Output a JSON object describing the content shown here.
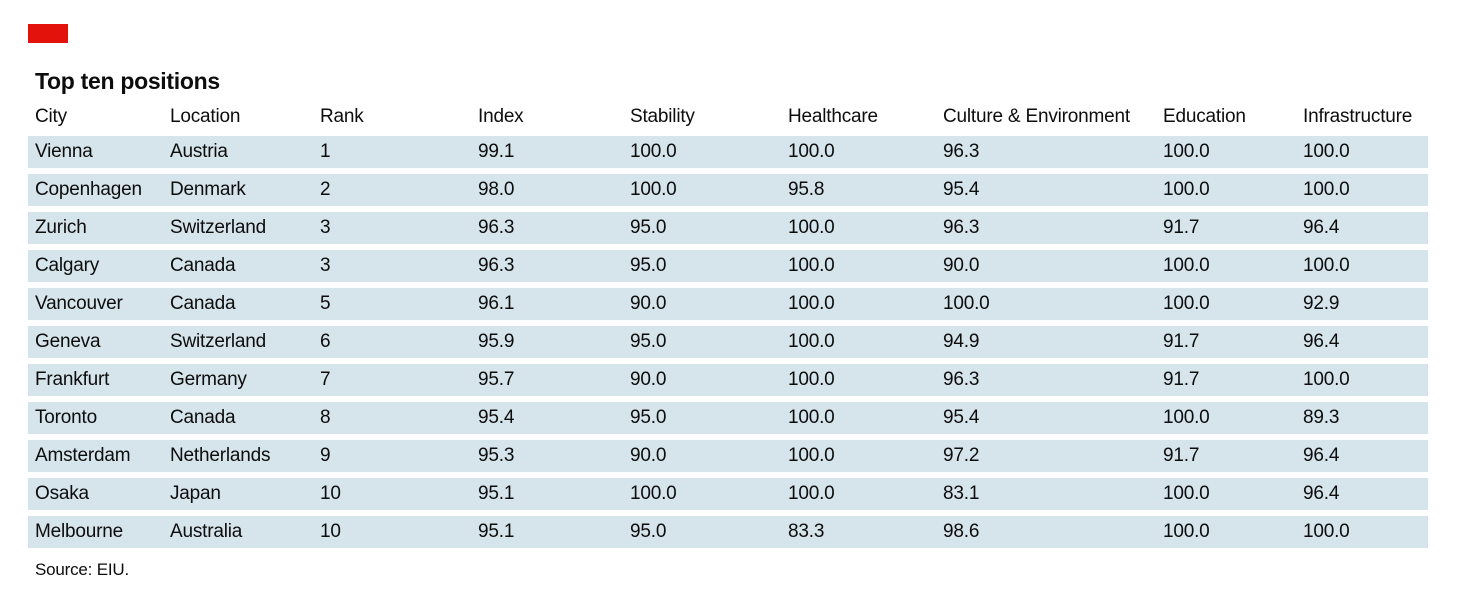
{
  "figure": {
    "title": "Top ten positions",
    "source": "Source: EIU.",
    "accent_color": "#e3120b",
    "row_color": "#d6e4ec"
  },
  "chart_data": {
    "type": "table",
    "title": "Top ten positions",
    "columns": [
      "City",
      "Location",
      "Rank",
      "Index",
      "Stability",
      "Healthcare",
      "Culture & Environment",
      "Education",
      "Infrastructure"
    ],
    "rows": [
      [
        "Vienna",
        "Austria",
        "1",
        "99.1",
        "100.0",
        "100.0",
        "96.3",
        "100.0",
        "100.0"
      ],
      [
        "Copenhagen",
        "Denmark",
        "2",
        "98.0",
        "100.0",
        "95.8",
        "95.4",
        "100.0",
        "100.0"
      ],
      [
        "Zurich",
        "Switzerland",
        "3",
        "96.3",
        "95.0",
        "100.0",
        "96.3",
        "91.7",
        "96.4"
      ],
      [
        "Calgary",
        "Canada",
        "3",
        "96.3",
        "95.0",
        "100.0",
        "90.0",
        "100.0",
        "100.0"
      ],
      [
        "Vancouver",
        "Canada",
        "5",
        "96.1",
        "90.0",
        "100.0",
        "100.0",
        "100.0",
        "92.9"
      ],
      [
        "Geneva",
        "Switzerland",
        "6",
        "95.9",
        "95.0",
        "100.0",
        "94.9",
        "91.7",
        "96.4"
      ],
      [
        "Frankfurt",
        "Germany",
        "7",
        "95.7",
        "90.0",
        "100.0",
        "96.3",
        "91.7",
        "100.0"
      ],
      [
        "Toronto",
        "Canada",
        "8",
        "95.4",
        "95.0",
        "100.0",
        "95.4",
        "100.0",
        "89.3"
      ],
      [
        "Amsterdam",
        "Netherlands",
        "9",
        "95.3",
        "90.0",
        "100.0",
        "97.2",
        "91.7",
        "96.4"
      ],
      [
        "Osaka",
        "Japan",
        "10",
        "95.1",
        "100.0",
        "100.0",
        "83.1",
        "100.0",
        "96.4"
      ],
      [
        "Melbourne",
        "Australia",
        "10",
        "95.1",
        "95.0",
        "83.3",
        "98.6",
        "100.0",
        "100.0"
      ]
    ],
    "source": "Source: EIU."
  }
}
